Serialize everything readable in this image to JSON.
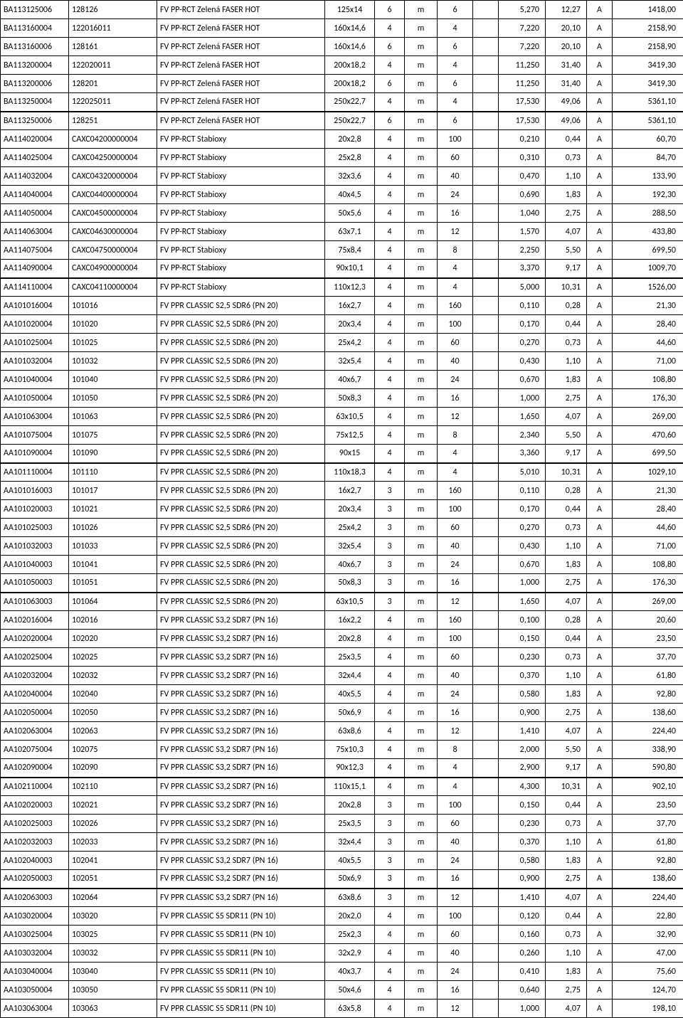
{
  "table": {
    "columns": [
      {
        "key": "code1",
        "class": "c0"
      },
      {
        "key": "code2",
        "class": "c1"
      },
      {
        "key": "desc",
        "class": "c2"
      },
      {
        "key": "size",
        "class": "c3"
      },
      {
        "key": "len",
        "class": "c4"
      },
      {
        "key": "unit",
        "class": "c5"
      },
      {
        "key": "qty",
        "class": "c6"
      },
      {
        "key": "blank",
        "class": "c7"
      },
      {
        "key": "w1",
        "class": "c8"
      },
      {
        "key": "w2",
        "class": "c9"
      },
      {
        "key": "grade",
        "class": "c10"
      },
      {
        "key": "price",
        "class": "c11"
      }
    ],
    "groups": [
      {
        "start": 0,
        "thick": false
      },
      {
        "start": 6,
        "thick": true
      },
      {
        "start": 15,
        "thick": true
      },
      {
        "start": 25,
        "thick": true
      },
      {
        "start": 32,
        "thick": true
      },
      {
        "start": 42,
        "thick": true
      },
      {
        "start": 48,
        "thick": true
      }
    ],
    "rows": [
      {
        "code1": "BA113125006",
        "code2": "128126",
        "desc": "FV PP-RCT Zelená FASER HOT",
        "size": "125x14",
        "len": "6",
        "unit": "m",
        "qty": "6",
        "blank": "",
        "w1": "5,270",
        "w2": "12,27",
        "grade": "A",
        "price": "1418,00"
      },
      {
        "code1": "BA113160004",
        "code2": "122016011",
        "desc": "FV PP-RCT Zelená FASER HOT",
        "size": "160x14,6",
        "len": "4",
        "unit": "m",
        "qty": "4",
        "blank": "",
        "w1": "7,220",
        "w2": "20,10",
        "grade": "A",
        "price": "2158,90"
      },
      {
        "code1": "BA113160006",
        "code2": "128161",
        "desc": "FV PP-RCT Zelená FASER HOT",
        "size": "160x14,6",
        "len": "6",
        "unit": "m",
        "qty": "6",
        "blank": "",
        "w1": "7,220",
        "w2": "20,10",
        "grade": "A",
        "price": "2158,90"
      },
      {
        "code1": "BA113200004",
        "code2": "122020011",
        "desc": "FV PP-RCT Zelená FASER HOT",
        "size": "200x18,2",
        "len": "4",
        "unit": "m",
        "qty": "4",
        "blank": "",
        "w1": "11,250",
        "w2": "31,40",
        "grade": "A",
        "price": "3419,30"
      },
      {
        "code1": "BA113200006",
        "code2": "128201",
        "desc": "FV PP-RCT Zelená FASER HOT",
        "size": "200x18,2",
        "len": "6",
        "unit": "m",
        "qty": "6",
        "blank": "",
        "w1": "11,250",
        "w2": "31,40",
        "grade": "A",
        "price": "3419,30"
      },
      {
        "code1": "BA113250004",
        "code2": "122025011",
        "desc": "FV PP-RCT Zelená FASER HOT",
        "size": "250x22,7",
        "len": "4",
        "unit": "m",
        "qty": "4",
        "blank": "",
        "w1": "17,530",
        "w2": "49,06",
        "grade": "A",
        "price": "5361,10"
      },
      {
        "code1": "BA113250006",
        "code2": "128251",
        "desc": "FV PP-RCT Zelená FASER HOT",
        "size": "250x22,7",
        "len": "6",
        "unit": "m",
        "qty": "6",
        "blank": "",
        "w1": "17,530",
        "w2": "49,06",
        "grade": "A",
        "price": "5361,10"
      },
      {
        "code1": "AA114020004",
        "code2": "CAXC04200000004",
        "desc": "FV  PP-RCT Stabioxy",
        "size": "20x2,8",
        "len": "4",
        "unit": "m",
        "qty": "100",
        "blank": "",
        "w1": "0,210",
        "w2": "0,44",
        "grade": "A",
        "price": "60,70"
      },
      {
        "code1": "AA114025004",
        "code2": "CAXC04250000004",
        "desc": "FV  PP-RCT Stabioxy",
        "size": "25x2,8",
        "len": "4",
        "unit": "m",
        "qty": "60",
        "blank": "",
        "w1": "0,310",
        "w2": "0,73",
        "grade": "A",
        "price": "84,70"
      },
      {
        "code1": "AA114032004",
        "code2": "CAXC04320000004",
        "desc": "FV  PP-RCT Stabioxy",
        "size": "32x3,6",
        "len": "4",
        "unit": "m",
        "qty": "40",
        "blank": "",
        "w1": "0,470",
        "w2": "1,10",
        "grade": "A",
        "price": "133,90"
      },
      {
        "code1": "AA114040004",
        "code2": "CAXC04400000004",
        "desc": "FV  PP-RCT Stabioxy",
        "size": "40x4,5",
        "len": "4",
        "unit": "m",
        "qty": "24",
        "blank": "",
        "w1": "0,690",
        "w2": "1,83",
        "grade": "A",
        "price": "192,30"
      },
      {
        "code1": "AA114050004",
        "code2": "CAXC04500000004",
        "desc": "FV  PP-RCT Stabioxy",
        "size": "50x5,6",
        "len": "4",
        "unit": "m",
        "qty": "16",
        "blank": "",
        "w1": "1,040",
        "w2": "2,75",
        "grade": "A",
        "price": "288,50"
      },
      {
        "code1": "AA114063004",
        "code2": "CAXC04630000004",
        "desc": "FV  PP-RCT Stabioxy",
        "size": "63x7,1",
        "len": "4",
        "unit": "m",
        "qty": "12",
        "blank": "",
        "w1": "1,570",
        "w2": "4,07",
        "grade": "A",
        "price": "433,80"
      },
      {
        "code1": "AA114075004",
        "code2": "CAXC04750000004",
        "desc": "FV  PP-RCT Stabioxy",
        "size": "75x8,4",
        "len": "4",
        "unit": "m",
        "qty": "8",
        "blank": "",
        "w1": "2,250",
        "w2": "5,50",
        "grade": "A",
        "price": "699,50"
      },
      {
        "code1": "AA114090004",
        "code2": "CAXC04900000004",
        "desc": "FV  PP-RCT Stabioxy",
        "size": "90x10,1",
        "len": "4",
        "unit": "m",
        "qty": "4",
        "blank": "",
        "w1": "3,370",
        "w2": "9,17",
        "grade": "A",
        "price": "1009,70"
      },
      {
        "code1": "AA114110004",
        "code2": "CAXC04110000004",
        "desc": "FV  PP-RCT Stabioxy",
        "size": "110x12,3",
        "len": "4",
        "unit": "m",
        "qty": "4",
        "blank": "",
        "w1": "5,000",
        "w2": "10,31",
        "grade": "A",
        "price": "1526,00"
      },
      {
        "code1": "AA101016004",
        "code2": "101016",
        "desc": "FV PPR CLASSIC S2,5 SDR6 (PN 20)",
        "size": "16x2,7",
        "len": "4",
        "unit": "m",
        "qty": "160",
        "blank": "",
        "w1": "0,110",
        "w2": "0,28",
        "grade": "A",
        "price": "21,30"
      },
      {
        "code1": "AA101020004",
        "code2": "101020",
        "desc": "FV PPR CLASSIC S2,5 SDR6 (PN 20)",
        "size": "20x3,4",
        "len": "4",
        "unit": "m",
        "qty": "100",
        "blank": "",
        "w1": "0,170",
        "w2": "0,44",
        "grade": "A",
        "price": "28,40"
      },
      {
        "code1": "AA101025004",
        "code2": "101025",
        "desc": "FV PPR CLASSIC S2,5 SDR6 (PN 20)",
        "size": "25x4,2",
        "len": "4",
        "unit": "m",
        "qty": "60",
        "blank": "",
        "w1": "0,270",
        "w2": "0,73",
        "grade": "A",
        "price": "44,60"
      },
      {
        "code1": "AA101032004",
        "code2": "101032",
        "desc": "FV PPR CLASSIC S2,5 SDR6 (PN 20)",
        "size": "32x5,4",
        "len": "4",
        "unit": "m",
        "qty": "40",
        "blank": "",
        "w1": "0,430",
        "w2": "1,10",
        "grade": "A",
        "price": "71,00"
      },
      {
        "code1": "AA101040004",
        "code2": "101040",
        "desc": "FV PPR CLASSIC S2,5 SDR6 (PN 20)",
        "size": "40x6,7",
        "len": "4",
        "unit": "m",
        "qty": "24",
        "blank": "",
        "w1": "0,670",
        "w2": "1,83",
        "grade": "A",
        "price": "108,80"
      },
      {
        "code1": "AA101050004",
        "code2": "101050",
        "desc": "FV PPR CLASSIC S2,5 SDR6 (PN 20)",
        "size": "50x8,3",
        "len": "4",
        "unit": "m",
        "qty": "16",
        "blank": "",
        "w1": "1,000",
        "w2": "2,75",
        "grade": "A",
        "price": "176,30"
      },
      {
        "code1": "AA101063004",
        "code2": "101063",
        "desc": "FV PPR CLASSIC S2,5 SDR6 (PN 20)",
        "size": "63x10,5",
        "len": "4",
        "unit": "m",
        "qty": "12",
        "blank": "",
        "w1": "1,650",
        "w2": "4,07",
        "grade": "A",
        "price": "269,00"
      },
      {
        "code1": "AA101075004",
        "code2": "101075",
        "desc": "FV PPR CLASSIC S2,5 SDR6 (PN 20)",
        "size": "75x12,5",
        "len": "4",
        "unit": "m",
        "qty": "8",
        "blank": "",
        "w1": "2,340",
        "w2": "5,50",
        "grade": "A",
        "price": "470,60"
      },
      {
        "code1": "AA101090004",
        "code2": "101090",
        "desc": "FV PPR CLASSIC S2,5 SDR6 (PN 20)",
        "size": "90x15",
        "len": "4",
        "unit": "m",
        "qty": "4",
        "blank": "",
        "w1": "3,360",
        "w2": "9,17",
        "grade": "A",
        "price": "699,50"
      },
      {
        "code1": "AA101110004",
        "code2": "101110",
        "desc": "FV PPR CLASSIC S2,5 SDR6 (PN 20)",
        "size": "110x18,3",
        "len": "4",
        "unit": "m",
        "qty": "4",
        "blank": "",
        "w1": "5,010",
        "w2": "10,31",
        "grade": "A",
        "price": "1029,10"
      },
      {
        "code1": "AA101016003",
        "code2": "101017",
        "desc": "FV PPR CLASSIC S2,5 SDR6 (PN 20)",
        "size": "16x2,7",
        "len": "3",
        "unit": "m",
        "qty": "160",
        "blank": "",
        "w1": "0,110",
        "w2": "0,28",
        "grade": "A",
        "price": "21,30"
      },
      {
        "code1": "AA101020003",
        "code2": "101021",
        "desc": "FV PPR CLASSIC S2,5 SDR6 (PN 20)",
        "size": "20x3,4",
        "len": "3",
        "unit": "m",
        "qty": "100",
        "blank": "",
        "w1": "0,170",
        "w2": "0,44",
        "grade": "A",
        "price": "28,40"
      },
      {
        "code1": "AA101025003",
        "code2": "101026",
        "desc": "FV PPR CLASSIC S2,5 SDR6 (PN 20)",
        "size": "25x4,2",
        "len": "3",
        "unit": "m",
        "qty": "60",
        "blank": "",
        "w1": "0,270",
        "w2": "0,73",
        "grade": "A",
        "price": "44,60"
      },
      {
        "code1": "AA101032003",
        "code2": "101033",
        "desc": "FV PPR CLASSIC S2,5 SDR6 (PN 20)",
        "size": "32x5,4",
        "len": "3",
        "unit": "m",
        "qty": "40",
        "blank": "",
        "w1": "0,430",
        "w2": "1,10",
        "grade": "A",
        "price": "71,00"
      },
      {
        "code1": "AA101040003",
        "code2": "101041",
        "desc": "FV PPR CLASSIC S2,5 SDR6 (PN 20)",
        "size": "40x6,7",
        "len": "3",
        "unit": "m",
        "qty": "24",
        "blank": "",
        "w1": "0,670",
        "w2": "1,83",
        "grade": "A",
        "price": "108,80"
      },
      {
        "code1": "AA101050003",
        "code2": "101051",
        "desc": "FV PPR CLASSIC S2,5 SDR6 (PN 20)",
        "size": "50x8,3",
        "len": "3",
        "unit": "m",
        "qty": "16",
        "blank": "",
        "w1": "1,000",
        "w2": "2,75",
        "grade": "A",
        "price": "176,30"
      },
      {
        "code1": "AA101063003",
        "code2": "101064",
        "desc": "FV PPR CLASSIC S2,5 SDR6 (PN 20)",
        "size": "63x10,5",
        "len": "3",
        "unit": "m",
        "qty": "12",
        "blank": "",
        "w1": "1,650",
        "w2": "4,07",
        "grade": "A",
        "price": "269,00"
      },
      {
        "code1": "AA102016004",
        "code2": "102016",
        "desc": "FV PPR CLASSIC S3,2 SDR7 (PN 16)",
        "size": "16x2,2",
        "len": "4",
        "unit": "m",
        "qty": "160",
        "blank": "",
        "w1": "0,100",
        "w2": "0,28",
        "grade": "A",
        "price": "20,60"
      },
      {
        "code1": "AA102020004",
        "code2": "102020",
        "desc": "FV PPR CLASSIC S3,2 SDR7 (PN 16)",
        "size": "20x2,8",
        "len": "4",
        "unit": "m",
        "qty": "100",
        "blank": "",
        "w1": "0,150",
        "w2": "0,44",
        "grade": "A",
        "price": "23,50"
      },
      {
        "code1": "AA102025004",
        "code2": "102025",
        "desc": "FV PPR CLASSIC S3,2 SDR7 (PN 16)",
        "size": "25x3,5",
        "len": "4",
        "unit": "m",
        "qty": "60",
        "blank": "",
        "w1": "0,230",
        "w2": "0,73",
        "grade": "A",
        "price": "37,70"
      },
      {
        "code1": "AA102032004",
        "code2": "102032",
        "desc": "FV PPR CLASSIC S3,2 SDR7 (PN 16)",
        "size": "32x4,4",
        "len": "4",
        "unit": "m",
        "qty": "40",
        "blank": "",
        "w1": "0,370",
        "w2": "1,10",
        "grade": "A",
        "price": "61,80"
      },
      {
        "code1": "AA102040004",
        "code2": "102040",
        "desc": "FV PPR CLASSIC S3,2 SDR7 (PN 16)",
        "size": "40x5,5",
        "len": "4",
        "unit": "m",
        "qty": "24",
        "blank": "",
        "w1": "0,580",
        "w2": "1,83",
        "grade": "A",
        "price": "92,80"
      },
      {
        "code1": "AA102050004",
        "code2": "102050",
        "desc": "FV PPR CLASSIC S3,2 SDR7 (PN 16)",
        "size": "50x6,9",
        "len": "4",
        "unit": "m",
        "qty": "16",
        "blank": "",
        "w1": "0,900",
        "w2": "2,75",
        "grade": "A",
        "price": "138,60"
      },
      {
        "code1": "AA102063004",
        "code2": "102063",
        "desc": "FV PPR CLASSIC S3,2 SDR7 (PN 16)",
        "size": "63x8,6",
        "len": "4",
        "unit": "m",
        "qty": "12",
        "blank": "",
        "w1": "1,410",
        "w2": "4,07",
        "grade": "A",
        "price": "224,40"
      },
      {
        "code1": "AA102075004",
        "code2": "102075",
        "desc": "FV PPR CLASSIC S3,2 SDR7 (PN 16)",
        "size": "75x10,3",
        "len": "4",
        "unit": "m",
        "qty": "8",
        "blank": "",
        "w1": "2,000",
        "w2": "5,50",
        "grade": "A",
        "price": "338,90"
      },
      {
        "code1": "AA102090004",
        "code2": "102090",
        "desc": "FV PPR CLASSIC S3,2 SDR7 (PN 16)",
        "size": "90x12,3",
        "len": "4",
        "unit": "m",
        "qty": "4",
        "blank": "",
        "w1": "2,900",
        "w2": "9,17",
        "grade": "A",
        "price": "590,80"
      },
      {
        "code1": "AA102110004",
        "code2": "102110",
        "desc": "FV PPR CLASSIC S3,2 SDR7 (PN 16)",
        "size": "110x15,1",
        "len": "4",
        "unit": "m",
        "qty": "4",
        "blank": "",
        "w1": "4,300",
        "w2": "10,31",
        "grade": "A",
        "price": "902,10"
      },
      {
        "code1": "AA102020003",
        "code2": "102021",
        "desc": "FV PPR CLASSIC S3,2 SDR7 (PN 16)",
        "size": "20x2,8",
        "len": "3",
        "unit": "m",
        "qty": "100",
        "blank": "",
        "w1": "0,150",
        "w2": "0,44",
        "grade": "A",
        "price": "23,50"
      },
      {
        "code1": "AA102025003",
        "code2": "102026",
        "desc": "FV PPR CLASSIC S3,2 SDR7 (PN 16)",
        "size": "25x3,5",
        "len": "3",
        "unit": "m",
        "qty": "60",
        "blank": "",
        "w1": "0,230",
        "w2": "0,73",
        "grade": "A",
        "price": "37,70"
      },
      {
        "code1": "AA102032003",
        "code2": "102033",
        "desc": "FV PPR CLASSIC S3,2 SDR7 (PN 16)",
        "size": "32x4,4",
        "len": "3",
        "unit": "m",
        "qty": "40",
        "blank": "",
        "w1": "0,370",
        "w2": "1,10",
        "grade": "A",
        "price": "61,80"
      },
      {
        "code1": "AA102040003",
        "code2": "102041",
        "desc": "FV PPR CLASSIC S3,2 SDR7 (PN 16)",
        "size": "40x5,5",
        "len": "3",
        "unit": "m",
        "qty": "24",
        "blank": "",
        "w1": "0,580",
        "w2": "1,83",
        "grade": "A",
        "price": "92,80"
      },
      {
        "code1": "AA102050003",
        "code2": "102051",
        "desc": "FV PPR CLASSIC S3,2 SDR7 (PN 16)",
        "size": "50x6,9",
        "len": "3",
        "unit": "m",
        "qty": "16",
        "blank": "",
        "w1": "0,900",
        "w2": "2,75",
        "grade": "A",
        "price": "138,60"
      },
      {
        "code1": "AA102063003",
        "code2": "102064",
        "desc": "FV PPR CLASSIC S3,2 SDR7 (PN 16)",
        "size": "63x8,6",
        "len": "3",
        "unit": "m",
        "qty": "12",
        "blank": "",
        "w1": "1,410",
        "w2": "4,07",
        "grade": "A",
        "price": "224,40"
      },
      {
        "code1": "AA103020004",
        "code2": "103020",
        "desc": "FV PPR CLASSIC S5 SDR11 (PN 10)",
        "size": "20x2,0",
        "len": "4",
        "unit": "m",
        "qty": "100",
        "blank": "",
        "w1": "0,120",
        "w2": "0,44",
        "grade": "A",
        "price": "22,80"
      },
      {
        "code1": "AA103025004",
        "code2": "103025",
        "desc": "FV PPR CLASSIC S5 SDR11 (PN 10)",
        "size": "25x2,3",
        "len": "4",
        "unit": "m",
        "qty": "60",
        "blank": "",
        "w1": "0,160",
        "w2": "0,73",
        "grade": "A",
        "price": "32,90"
      },
      {
        "code1": "AA103032004",
        "code2": "103032",
        "desc": "FV PPR CLASSIC S5 SDR11 (PN 10)",
        "size": "32x2,9",
        "len": "4",
        "unit": "m",
        "qty": "40",
        "blank": "",
        "w1": "0,260",
        "w2": "1,10",
        "grade": "A",
        "price": "47,00"
      },
      {
        "code1": "AA103040004",
        "code2": "103040",
        "desc": "FV PPR CLASSIC S5 SDR11 (PN 10)",
        "size": "40x3,7",
        "len": "4",
        "unit": "m",
        "qty": "24",
        "blank": "",
        "w1": "0,410",
        "w2": "1,83",
        "grade": "A",
        "price": "75,60"
      },
      {
        "code1": "AA103050004",
        "code2": "103050",
        "desc": "FV PPR CLASSIC S5 SDR11 (PN 10)",
        "size": "50x4,6",
        "len": "4",
        "unit": "m",
        "qty": "16",
        "blank": "",
        "w1": "0,640",
        "w2": "2,75",
        "grade": "A",
        "price": "124,70"
      },
      {
        "code1": "AA103063004",
        "code2": "103063",
        "desc": "FV PPR CLASSIC S5 SDR11 (PN 10)",
        "size": "63x5,8",
        "len": "4",
        "unit": "m",
        "qty": "12",
        "blank": "",
        "w1": "1,000",
        "w2": "4,07",
        "grade": "A",
        "price": "198,10"
      }
    ]
  }
}
